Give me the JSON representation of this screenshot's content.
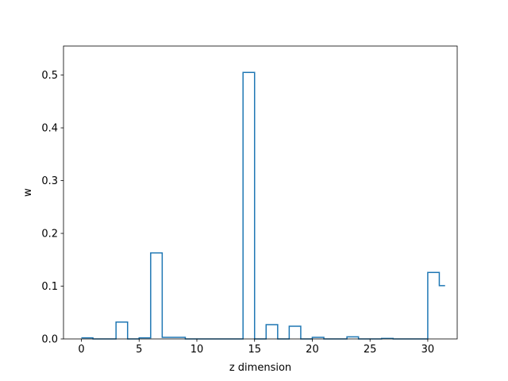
{
  "chart_data": {
    "type": "line",
    "step": "post",
    "title": "",
    "xlabel": "z dimension",
    "ylabel": "w",
    "xlim": [
      -1.55,
      32.55
    ],
    "ylim": [
      0,
      0.555
    ],
    "xticks": [
      0,
      5,
      10,
      15,
      20,
      25,
      30
    ],
    "yticks": [
      0.0,
      0.1,
      0.2,
      0.3,
      0.4,
      0.5
    ],
    "xtick_labels": [
      "0",
      "5",
      "10",
      "15",
      "20",
      "25",
      "30"
    ],
    "ytick_labels": [
      "0.0",
      "0.1",
      "0.2",
      "0.3",
      "0.4",
      "0.5"
    ],
    "grid": false,
    "legend": false,
    "series": [
      {
        "color": "#1f77b4",
        "x": [
          0,
          1,
          2,
          3,
          4,
          5,
          6,
          7,
          8,
          9,
          10,
          11,
          12,
          13,
          14,
          15,
          16,
          17,
          18,
          19,
          20,
          21,
          22,
          23,
          24,
          25,
          26,
          27,
          28,
          29,
          30,
          31
        ],
        "values": [
          0.002,
          0.0,
          0.0,
          0.032,
          0.0,
          0.002,
          0.163,
          0.003,
          0.003,
          0.0,
          0.0,
          0.0,
          0.0,
          0.0,
          0.505,
          0.0,
          0.027,
          0.0,
          0.024,
          0.0,
          0.003,
          0.0,
          0.0,
          0.004,
          0.0,
          0.0,
          0.001,
          0.0,
          0.0,
          0.0,
          0.126,
          0.101
        ]
      }
    ]
  }
}
